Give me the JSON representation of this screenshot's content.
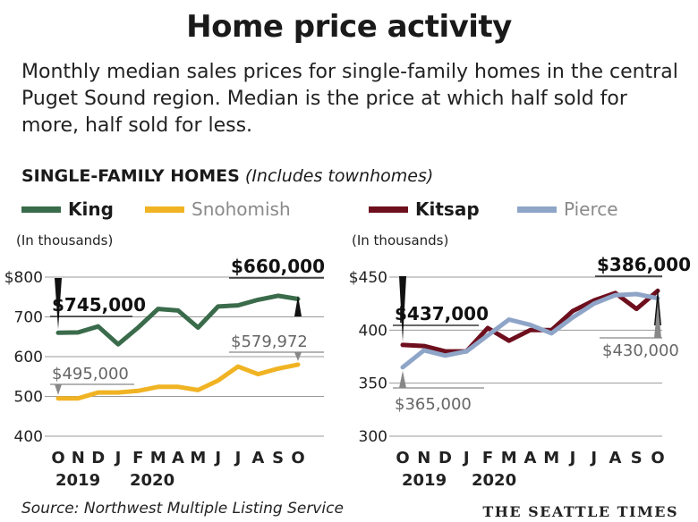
{
  "header": {
    "title": "Home price activity",
    "intro": "Monthly median sales prices for single-family homes in the central Puget Sound region. Median is the price at which half sold for more, half sold for less."
  },
  "section": {
    "label": "SINGLE-FAMILY HOMES",
    "note": "(Includes townhomes)"
  },
  "footer": {
    "source": "Source: Northwest Multiple Listing Service",
    "brand": "THE SEATTLE TIMES"
  },
  "colors": {
    "king": "#3a6b4b",
    "snohomish": "#f0b323",
    "kitsap": "#6e0f1e",
    "pierce": "#8fa5c8",
    "grid": "#9a9a9a"
  },
  "chart_data": [
    {
      "type": "line",
      "unit_label": "(In thousands)",
      "x": [
        "O",
        "N",
        "D",
        "J",
        "F",
        "M",
        "A",
        "M",
        "J",
        "J",
        "A",
        "S",
        "O"
      ],
      "year_labels": [
        "2019",
        "2020"
      ],
      "yticks": [
        "$800",
        "700",
        "600",
        "500",
        "400"
      ],
      "ylim": [
        400,
        800
      ],
      "series": [
        {
          "name": "King",
          "values": [
            660,
            661,
            676,
            631,
            673,
            720,
            716,
            673,
            726,
            729,
            743,
            753,
            745
          ]
        },
        {
          "name": "Snohomish",
          "values": [
            495,
            495,
            510,
            510,
            514,
            524,
            524,
            516,
            540,
            575,
            556,
            570,
            579.972
          ]
        }
      ],
      "annotations": [
        {
          "text": "$745,000",
          "series": "King",
          "index": 12
        },
        {
          "text": "$660,000",
          "series": "King",
          "index": 0
        },
        {
          "text": "$579,972",
          "series": "Snohomish",
          "index": 12
        },
        {
          "text": "$495,000",
          "series": "Snohomish",
          "index": 0
        }
      ]
    },
    {
      "type": "line",
      "unit_label": "(In thousands)",
      "x": [
        "O",
        "N",
        "D",
        "J",
        "F",
        "M",
        "A",
        "M",
        "J",
        "J",
        "A",
        "S",
        "O"
      ],
      "year_labels": [
        "2019",
        "2020"
      ],
      "yticks": [
        "$450",
        "400",
        "350",
        "300"
      ],
      "ylim": [
        300,
        450
      ],
      "series": [
        {
          "name": "Kitsap",
          "values": [
            386,
            385,
            380,
            380,
            402,
            390,
            400,
            400,
            418,
            428,
            435,
            420,
            437
          ]
        },
        {
          "name": "Pierce",
          "values": [
            365,
            381,
            376,
            380,
            395,
            410,
            405,
            397,
            412,
            425,
            433,
            434,
            430
          ]
        }
      ],
      "annotations": [
        {
          "text": "$437,000",
          "series": "Kitsap",
          "index": 12
        },
        {
          "text": "$386,000",
          "series": "Kitsap",
          "index": 0
        },
        {
          "text": "$430,000",
          "series": "Pierce",
          "index": 12
        },
        {
          "text": "$365,000",
          "series": "Pierce",
          "index": 0
        }
      ]
    }
  ]
}
